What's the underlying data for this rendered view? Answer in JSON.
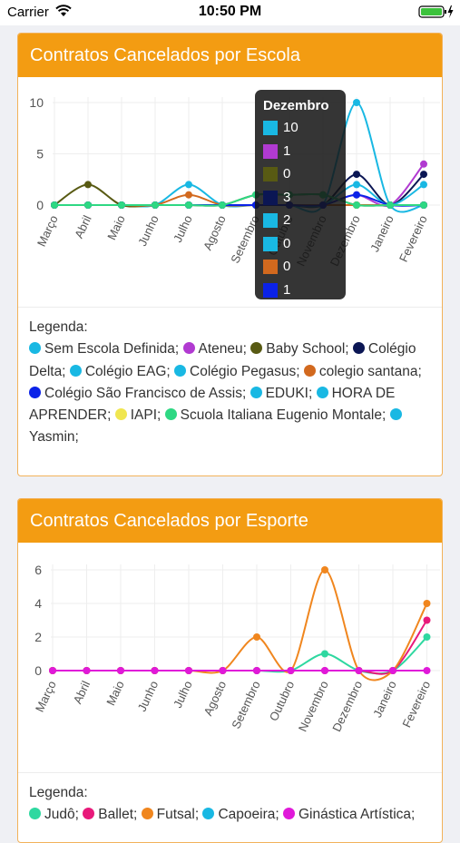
{
  "status_bar": {
    "carrier": "Carrier",
    "time": "10:50 PM"
  },
  "cards": [
    {
      "title": "Contratos Cancelados por Escola",
      "legend_label": "Legenda:",
      "legend": [
        {
          "name": "Sem Escola Definida;",
          "color": "#19b8e3"
        },
        {
          "name": "Ateneu;",
          "color": "#b13ad1"
        },
        {
          "name": "Baby School;",
          "color": "#585a13"
        },
        {
          "name": "Colégio Delta;",
          "color": "#0b1654"
        },
        {
          "name": "Colégio EAG;",
          "color": "#19b8e3"
        },
        {
          "name": "Colégio Pegasus;",
          "color": "#19b8e3"
        },
        {
          "name": "colegio santana;",
          "color": "#d2691e"
        },
        {
          "name": "Colégio São Francisco de Assis;",
          "color": "#0b22e8"
        },
        {
          "name": "EDUKI;",
          "color": "#19b8e3"
        },
        {
          "name": "HORA DE APRENDER;",
          "color": "#19b8e3"
        },
        {
          "name": "IAPI;",
          "color": "#f0e650"
        },
        {
          "name": "Scuola Italiana Eugenio Montale;",
          "color": "#2ed883"
        },
        {
          "name": "Yasmin;",
          "color": "#19b8e3"
        }
      ],
      "tooltip": {
        "title": "Dezembro",
        "rows": [
          {
            "value": "10",
            "color": "#19b8e3"
          },
          {
            "value": "1",
            "color": "#b13ad1"
          },
          {
            "value": "0",
            "color": "#585a13"
          },
          {
            "value": "3",
            "color": "#0b1654"
          },
          {
            "value": "2",
            "color": "#19b8e3"
          },
          {
            "value": "0",
            "color": "#19b8e3"
          },
          {
            "value": "0",
            "color": "#d2691e"
          },
          {
            "value": "1",
            "color": "#0b22e8"
          }
        ]
      }
    },
    {
      "title": "Contratos Cancelados por Esporte",
      "legend_label": "Legenda:",
      "legend": [
        {
          "name": "Judô;",
          "color": "#2ed8a0"
        },
        {
          "name": "Ballet;",
          "color": "#e8197a"
        },
        {
          "name": "Futsal;",
          "color": "#f0861e"
        },
        {
          "name": "Capoeira;",
          "color": "#19b8e3"
        },
        {
          "name": "Ginástica Artística;",
          "color": "#e019d9"
        }
      ]
    }
  ],
  "chart_data": [
    {
      "type": "line",
      "title": "Contratos Cancelados por Escola",
      "categories": [
        "Março",
        "Abril",
        "Maio",
        "Junho",
        "Julho",
        "Agosto",
        "Setembro",
        "Outubro",
        "Novembro",
        "Dezembro",
        "Janeiro",
        "Fevereiro"
      ],
      "ylim": [
        0,
        10
      ],
      "yticks": [
        "0",
        "5",
        "10"
      ],
      "grid": true,
      "series": [
        {
          "name": "Sem Escola Definida",
          "color": "#19b8e3",
          "values": [
            0,
            0,
            0,
            0,
            2,
            0,
            0,
            0,
            0,
            10,
            0,
            0
          ]
        },
        {
          "name": "Ateneu",
          "color": "#b13ad1",
          "values": [
            0,
            0,
            0,
            0,
            0,
            0,
            0,
            0,
            0,
            1,
            0,
            4
          ]
        },
        {
          "name": "Baby School",
          "color": "#585a13",
          "values": [
            0,
            2,
            0,
            0,
            0,
            0,
            1,
            1,
            1,
            0,
            0,
            0
          ]
        },
        {
          "name": "Colégio Delta",
          "color": "#0b1654",
          "values": [
            0,
            0,
            0,
            0,
            0,
            0,
            0,
            0,
            0,
            3,
            0,
            3
          ]
        },
        {
          "name": "Colégio EAG",
          "color": "#19b8e3",
          "values": [
            0,
            0,
            0,
            0,
            0,
            0,
            0,
            0,
            0,
            2,
            0,
            2
          ]
        },
        {
          "name": "colegio santana",
          "color": "#d2691e",
          "values": [
            0,
            0,
            0,
            0,
            1,
            0,
            0,
            0,
            0,
            0,
            0,
            0
          ]
        },
        {
          "name": "Colégio São Francisco de Assis",
          "color": "#0b22e8",
          "values": [
            0,
            0,
            0,
            0,
            0,
            0,
            0,
            0,
            0,
            1,
            0,
            0
          ]
        },
        {
          "name": "Scuola Italiana Eugenio Montale",
          "color": "#2ed883",
          "values": [
            0,
            0,
            0,
            0,
            0,
            0,
            1,
            1,
            1,
            0,
            0,
            0
          ]
        }
      ]
    },
    {
      "type": "line",
      "title": "Contratos Cancelados por Esporte",
      "categories": [
        "Março",
        "Abril",
        "Maio",
        "Junho",
        "Julho",
        "Agosto",
        "Setembro",
        "Outubro",
        "Novembro",
        "Dezembro",
        "Janeiro",
        "Fevereiro"
      ],
      "ylim": [
        0,
        6
      ],
      "yticks": [
        "0",
        "2",
        "4",
        "6"
      ],
      "grid": true,
      "series": [
        {
          "name": "Judô",
          "color": "#2ed8a0",
          "values": [
            0,
            0,
            0,
            0,
            0,
            0,
            0,
            0,
            1,
            0,
            0,
            2
          ]
        },
        {
          "name": "Ballet",
          "color": "#e8197a",
          "values": [
            0,
            0,
            0,
            0,
            0,
            0,
            0,
            0,
            0,
            0,
            0,
            3
          ]
        },
        {
          "name": "Futsal",
          "color": "#f0861e",
          "values": [
            0,
            0,
            0,
            0,
            0,
            0,
            2,
            0,
            6,
            0,
            0,
            4
          ]
        },
        {
          "name": "Ginástica Artística",
          "color": "#e019d9",
          "values": [
            0,
            0,
            0,
            0,
            0,
            0,
            0,
            0,
            0,
            0,
            0,
            0
          ]
        }
      ]
    }
  ]
}
